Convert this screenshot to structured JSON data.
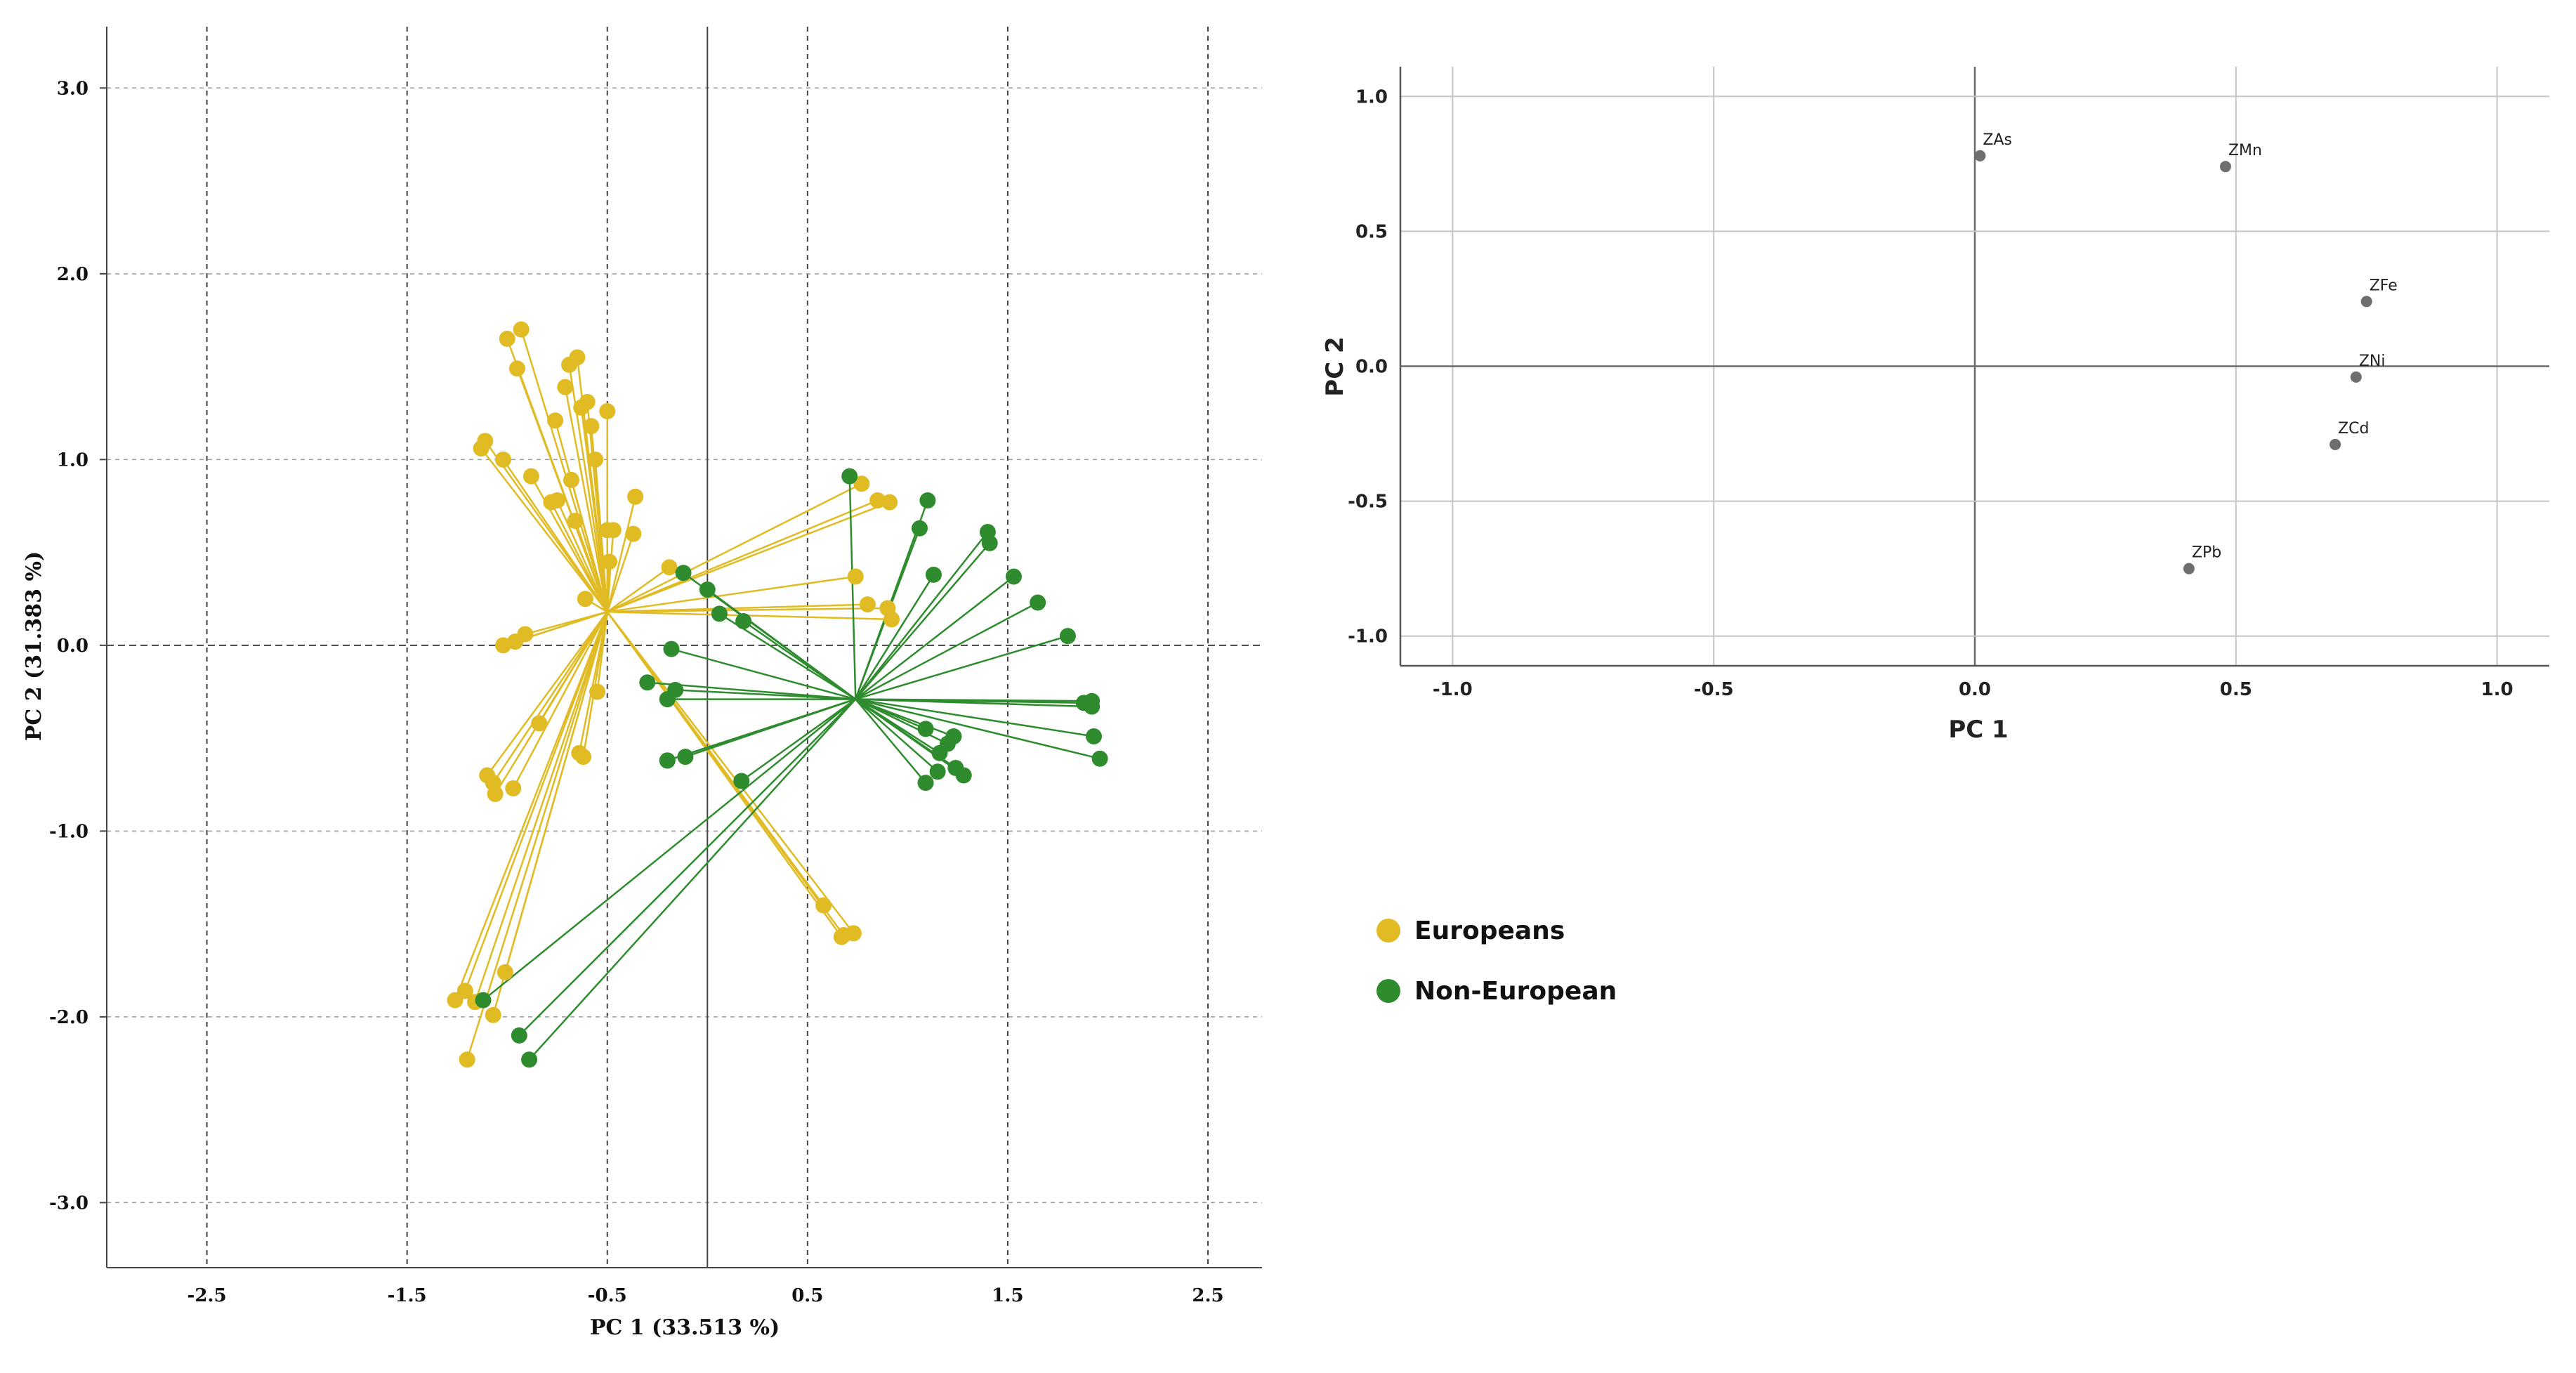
{
  "colors": {
    "europeans": "#E0BB23",
    "non_european": "#2E8B2E",
    "loading_point": "#6E6E6E",
    "grid": "#BFBFBF",
    "axis": "#555555"
  },
  "chart_data": [
    {
      "type": "scatter",
      "subtype": "biplot",
      "xlabel": "PC 1 (33.513 %)",
      "ylabel": "PC 2 (31.383 %)",
      "xlim": [
        -3.0,
        2.77
      ],
      "ylim": [
        -3.35,
        3.33
      ],
      "xticks": [
        -2.5,
        -1.5,
        -0.5,
        0.5,
        1.5,
        2.5
      ],
      "xtick_labels": [
        "-2.5",
        "-1.5",
        "-0.5",
        "0.5",
        "1.5",
        "2.5"
      ],
      "yticks": [
        3.0,
        2.0,
        1.0,
        0.0,
        -1.0,
        -2.0,
        -3.0
      ],
      "ytick_labels": [
        "3.0",
        "2.0",
        "1.0",
        "0.0",
        "-1.0",
        "-2.0",
        "-3.0"
      ],
      "grid": true,
      "series": [
        {
          "name": "Europeans",
          "color_key": "europeans",
          "centroid": [
            -0.5,
            0.18
          ],
          "x": [
            -1.0,
            -0.93,
            -0.95,
            -0.65,
            -0.69,
            -0.58,
            -0.71,
            -0.6,
            -0.63,
            -1.11,
            -1.13,
            -1.02,
            -0.76,
            -0.56,
            -0.68,
            -0.88,
            -0.75,
            -0.78,
            -0.47,
            -0.36,
            -0.66,
            -0.49,
            -0.37,
            -0.5,
            -0.5,
            -0.61,
            -1.02,
            -0.91,
            -0.96,
            -0.84,
            -1.1,
            -1.07,
            -0.97,
            -1.06,
            -0.64,
            -0.62,
            -0.55,
            -0.19,
            -1.01,
            -1.21,
            -1.26,
            -1.16,
            -1.07,
            -1.2,
            0.58,
            0.68,
            0.73,
            0.67,
            0.77,
            0.85,
            0.91,
            0.74,
            0.8,
            0.9,
            0.92
          ],
          "y": [
            1.65,
            1.7,
            1.49,
            1.55,
            1.51,
            1.18,
            1.39,
            1.31,
            1.28,
            1.1,
            1.06,
            1.0,
            1.21,
            1.0,
            0.89,
            0.91,
            0.78,
            0.77,
            0.62,
            0.8,
            0.67,
            0.45,
            0.6,
            1.26,
            0.62,
            0.25,
            0.0,
            0.06,
            0.02,
            -0.42,
            -0.7,
            -0.74,
            -0.77,
            -0.8,
            -0.58,
            -0.6,
            -0.25,
            0.42,
            -1.76,
            -1.86,
            -1.91,
            -1.92,
            -1.99,
            -2.23,
            -1.4,
            -1.56,
            -1.55,
            -1.57,
            0.87,
            0.78,
            0.77,
            0.37,
            0.22,
            0.2,
            0.14
          ]
        },
        {
          "name": "Non-European",
          "color_key": "non_european",
          "centroid": [
            0.74,
            -0.29
          ],
          "x": [
            0.71,
            -0.12,
            0.0,
            0.06,
            0.18,
            -0.18,
            -0.3,
            -0.16,
            -0.2,
            -0.2,
            -0.2,
            -0.11,
            0.17,
            1.1,
            1.06,
            1.13,
            1.4,
            1.41,
            1.53,
            1.65,
            1.8,
            1.88,
            1.92,
            1.92,
            1.93,
            1.96,
            1.09,
            1.23,
            1.2,
            1.16,
            1.24,
            1.28,
            1.15,
            1.09,
            -1.12,
            -0.94,
            -0.89
          ],
          "y": [
            0.91,
            0.39,
            0.3,
            0.17,
            0.13,
            -0.02,
            -0.2,
            -0.24,
            -0.29,
            -0.62,
            -0.62,
            -0.6,
            -0.73,
            0.78,
            0.63,
            0.38,
            0.61,
            0.55,
            0.37,
            0.23,
            0.05,
            -0.31,
            -0.3,
            -0.33,
            -0.49,
            -0.61,
            -0.45,
            -0.49,
            -0.53,
            -0.58,
            -0.66,
            -0.7,
            -0.68,
            -0.74,
            -1.91,
            -2.1,
            -2.23
          ]
        }
      ]
    },
    {
      "type": "scatter",
      "subtype": "loading_plot",
      "xlabel": "PC 1",
      "ylabel": "PC 2",
      "xlim": [
        -1.1,
        1.1
      ],
      "ylim": [
        -1.11,
        1.11
      ],
      "xticks": [
        -1.0,
        -0.5,
        0.0,
        0.5,
        1.0
      ],
      "xtick_labels": [
        "-1.0",
        "-0.5",
        "0.0",
        "0.5",
        "1.0"
      ],
      "yticks": [
        1.0,
        0.5,
        0.0,
        -0.5,
        -1.0
      ],
      "ytick_labels": [
        "1.0",
        "0.5",
        "0.0",
        "-0.5",
        "-1.0"
      ],
      "grid": true,
      "points": [
        {
          "label": "ZAs",
          "x": 0.01,
          "y": 0.78
        },
        {
          "label": "ZMn",
          "x": 0.48,
          "y": 0.74
        },
        {
          "label": "ZFe",
          "x": 0.75,
          "y": 0.24
        },
        {
          "label": "ZNi",
          "x": 0.73,
          "y": -0.04
        },
        {
          "label": "ZCd",
          "x": 0.69,
          "y": -0.29
        },
        {
          "label": "ZPb",
          "x": 0.41,
          "y": -0.75
        }
      ]
    }
  ],
  "legend": {
    "items": [
      {
        "label": "Europeans",
        "color_key": "europeans"
      },
      {
        "label": "Non-European",
        "color_key": "non_european"
      }
    ]
  }
}
